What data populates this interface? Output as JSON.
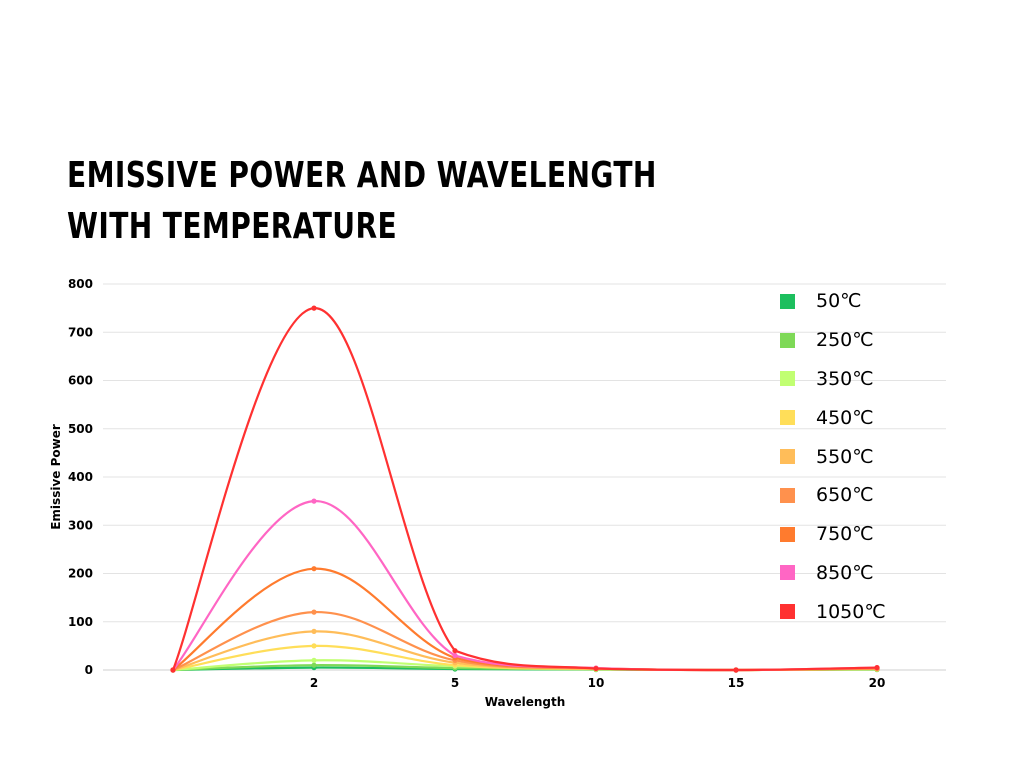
{
  "title": {
    "line1": "EMISSIVE POWER AND WAVELENGTH",
    "line2": "WITH TEMPERATURE"
  },
  "chart_data": {
    "type": "line",
    "x": [
      0,
      2,
      5,
      10,
      15,
      20
    ],
    "x_tick_labels": [
      "2",
      "5",
      "10",
      "15",
      "20"
    ],
    "xlabel": "Wavelength",
    "ylabel": "Emissive Power",
    "ylim": [
      0,
      800
    ],
    "y_ticks": [
      0,
      100,
      200,
      300,
      400,
      500,
      600,
      700,
      800
    ],
    "grid": true,
    "legend_position": "right",
    "series": [
      {
        "name": "50℃",
        "color": "#1DBF5E",
        "values": [
          0,
          5,
          2,
          1,
          0,
          1
        ]
      },
      {
        "name": "250℃",
        "color": "#7ED957",
        "values": [
          0,
          10,
          4,
          1,
          0,
          1
        ]
      },
      {
        "name": "350℃",
        "color": "#C1FF72",
        "values": [
          0,
          20,
          8,
          2,
          0,
          2
        ]
      },
      {
        "name": "450℃",
        "color": "#FFDE59",
        "values": [
          0,
          50,
          10,
          2,
          0,
          2
        ]
      },
      {
        "name": "550℃",
        "color": "#FFBD59",
        "values": [
          0,
          80,
          15,
          3,
          0,
          3
        ]
      },
      {
        "name": "650℃",
        "color": "#FF914D",
        "values": [
          0,
          120,
          20,
          3,
          0,
          3
        ]
      },
      {
        "name": "750℃",
        "color": "#FF7B2E",
        "values": [
          0,
          210,
          25,
          4,
          0,
          4
        ]
      },
      {
        "name": "850℃",
        "color": "#FF66C4",
        "values": [
          0,
          350,
          30,
          4,
          0,
          5
        ]
      },
      {
        "name": "1050℃",
        "color": "#FF3131",
        "values": [
          0,
          750,
          40,
          3,
          0,
          5
        ]
      }
    ]
  }
}
